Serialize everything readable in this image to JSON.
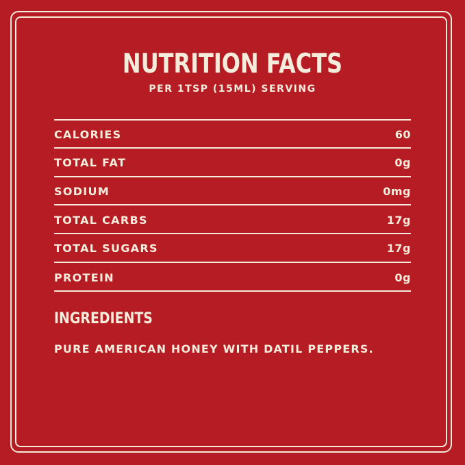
{
  "label": {
    "title": "NUTRITION FACTS",
    "serving": "PER 1TSP (15ML) SERVING",
    "rows": [
      {
        "label": "CALORIES",
        "value": "60"
      },
      {
        "label": "TOTAL FAT",
        "value": "0g"
      },
      {
        "label": "SODIUM",
        "value": "0mg"
      },
      {
        "label": "TOTAL CARBS",
        "value": "17g"
      },
      {
        "label": "TOTAL SUGARS",
        "value": "17g"
      },
      {
        "label": "PROTEIN",
        "value": "0g"
      }
    ],
    "ingredients_heading": "INGREDIENTS",
    "ingredients_text": "PURE AMERICAN HONEY WITH DATIL PEPPERS."
  },
  "colors": {
    "background": "#b61c24",
    "text": "#f6ecdc"
  }
}
